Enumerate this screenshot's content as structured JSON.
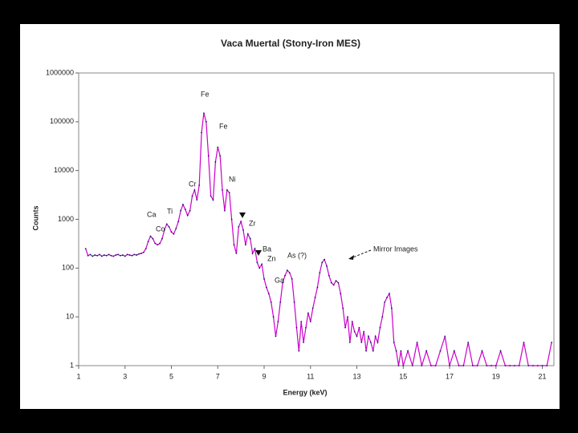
{
  "chart_data": {
    "type": "line",
    "title": "Vaca Muertal (Stony-Iron MES)",
    "x_label": "Energy (keV)",
    "y_label": "Counts",
    "log_y": true,
    "grid": false,
    "xlim": [
      1,
      21.5
    ],
    "xticks": [
      1,
      3,
      5,
      7,
      9,
      11,
      13,
      15,
      17,
      19,
      21
    ],
    "ylim": [
      1,
      1000000
    ],
    "yticks": [
      1,
      10,
      100,
      1000,
      10000,
      100000,
      1000000
    ],
    "annotations": [
      "Fe",
      "Fe",
      "Cr",
      "Ni",
      "Ti",
      "Ca",
      "Co",
      "Zr",
      "Ba",
      "Zn",
      "Ga",
      "As (?)",
      "Mirror Images"
    ],
    "series": [
      {
        "color": "#cc00cc",
        "marker_color": "#1a1a66",
        "x": [
          1.3,
          1.4,
          1.5,
          1.6,
          1.7,
          1.8,
          1.9,
          2.0,
          2.1,
          2.2,
          2.3,
          2.4,
          2.5,
          2.6,
          2.7,
          2.8,
          2.9,
          3.0,
          3.1,
          3.2,
          3.3,
          3.4,
          3.5,
          3.6,
          3.7,
          3.8,
          3.9,
          4.0,
          4.1,
          4.2,
          4.3,
          4.4,
          4.5,
          4.6,
          4.7,
          4.8,
          4.9,
          5.0,
          5.1,
          5.2,
          5.3,
          5.4,
          5.5,
          5.6,
          5.7,
          5.8,
          5.9,
          6.0,
          6.1,
          6.2,
          6.3,
          6.4,
          6.5,
          6.6,
          6.7,
          6.8,
          6.9,
          7.0,
          7.1,
          7.2,
          7.3,
          7.4,
          7.5,
          7.6,
          7.7,
          7.8,
          7.9,
          8.0,
          8.1,
          8.2,
          8.3,
          8.4,
          8.5,
          8.6,
          8.7,
          8.8,
          8.9,
          9.0,
          9.1,
          9.2,
          9.3,
          9.4,
          9.5,
          9.6,
          9.7,
          9.8,
          9.9,
          10.0,
          10.1,
          10.2,
          10.3,
          10.4,
          10.5,
          10.6,
          10.7,
          10.8,
          10.9,
          11.0,
          11.1,
          11.2,
          11.3,
          11.4,
          11.5,
          11.6,
          11.7,
          11.8,
          11.9,
          12.0,
          12.1,
          12.2,
          12.3,
          12.4,
          12.5,
          12.6,
          12.7,
          12.8,
          12.9,
          13.0,
          13.1,
          13.2,
          13.3,
          13.4,
          13.5,
          13.6,
          13.7,
          13.8,
          13.9,
          14.0,
          14.1,
          14.2,
          14.3,
          14.4,
          14.5,
          14.6,
          14.7,
          14.8,
          14.9,
          15.0,
          15.2,
          15.4,
          15.6,
          15.8,
          16.0,
          16.2,
          16.4,
          16.6,
          16.8,
          17.0,
          17.2,
          17.4,
          17.6,
          17.8,
          18.0,
          18.2,
          18.4,
          18.6,
          18.8,
          19.0,
          19.2,
          19.4,
          19.6,
          19.8,
          20.0,
          20.2,
          20.4,
          20.6,
          20.8,
          21.0,
          21.2,
          21.4
        ],
        "values": [
          250,
          180,
          190,
          175,
          185,
          180,
          190,
          175,
          185,
          180,
          190,
          180,
          175,
          185,
          190,
          180,
          185,
          175,
          190,
          185,
          180,
          190,
          185,
          195,
          200,
          210,
          250,
          350,
          450,
          400,
          320,
          300,
          320,
          400,
          600,
          800,
          700,
          550,
          500,
          650,
          900,
          1500,
          2000,
          1600,
          1200,
          1500,
          3000,
          4000,
          2500,
          5000,
          60000,
          150000,
          100000,
          20000,
          3000,
          2500,
          15000,
          30000,
          20000,
          4000,
          1500,
          4000,
          3500,
          1000,
          300,
          200,
          700,
          900,
          600,
          300,
          500,
          400,
          200,
          250,
          130,
          100,
          120,
          60,
          40,
          30,
          20,
          10,
          4,
          8,
          20,
          50,
          70,
          90,
          80,
          60,
          20,
          6,
          2,
          8,
          3,
          6,
          12,
          8,
          15,
          25,
          40,
          80,
          130,
          150,
          110,
          70,
          50,
          45,
          55,
          50,
          30,
          15,
          6,
          10,
          3,
          8,
          5,
          4,
          6,
          3,
          5,
          2,
          4,
          3,
          2,
          4,
          3,
          6,
          10,
          20,
          25,
          30,
          15,
          3,
          2,
          1,
          2,
          1,
          2,
          1,
          3,
          1,
          2,
          1,
          1,
          2,
          4,
          1,
          2,
          1,
          1,
          3,
          1,
          1,
          2,
          1,
          1,
          1,
          2,
          1,
          1,
          1,
          1,
          3,
          1,
          1,
          1,
          1,
          1,
          3
        ]
      }
    ]
  }
}
